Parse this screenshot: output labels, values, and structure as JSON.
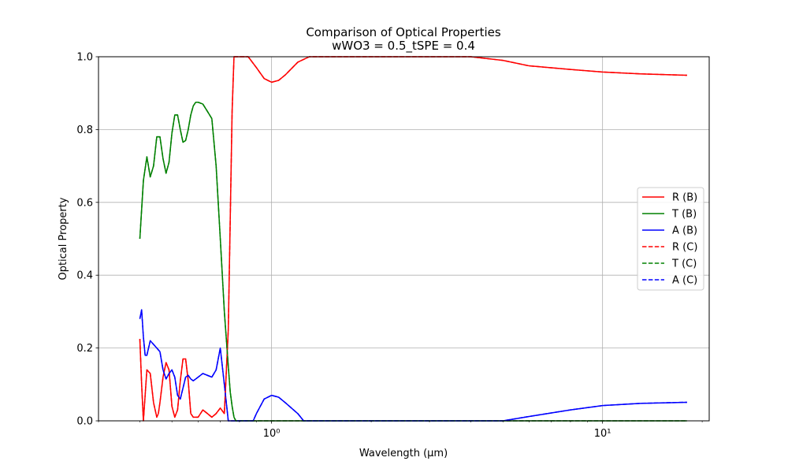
{
  "chart_data": {
    "type": "line",
    "title": "Comparison of Optical Properties",
    "subtitle": "wWO3 = 0.5_tSPE = 0.4",
    "xlabel": "Wavelength (μm)",
    "ylabel": "Optical Property",
    "xscale": "log",
    "xlim": [
      0.3,
      21
    ],
    "ylim": [
      0,
      1
    ],
    "xticks": [
      {
        "value": 1,
        "label": "10⁰"
      },
      {
        "value": 10,
        "label": "10¹"
      }
    ],
    "yticks": [
      {
        "value": 0.0,
        "label": "0.0"
      },
      {
        "value": 0.2,
        "label": "0.2"
      },
      {
        "value": 0.4,
        "label": "0.4"
      },
      {
        "value": 0.6,
        "label": "0.6"
      },
      {
        "value": 0.8,
        "label": "0.8"
      },
      {
        "value": 1.0,
        "label": "1.0"
      }
    ],
    "grid": true,
    "legend_position": "center-right",
    "series": [
      {
        "name": "R (B)",
        "color": "#ff0000",
        "dash": "solid",
        "x": [
          0.4,
          0.405,
          0.41,
          0.415,
          0.42,
          0.43,
          0.44,
          0.45,
          0.455,
          0.46,
          0.47,
          0.48,
          0.49,
          0.5,
          0.51,
          0.52,
          0.53,
          0.54,
          0.55,
          0.56,
          0.57,
          0.58,
          0.59,
          0.6,
          0.61,
          0.62,
          0.64,
          0.66,
          0.68,
          0.7,
          0.72,
          0.74,
          0.75,
          0.76,
          0.77,
          0.78,
          0.79,
          0.8,
          0.85,
          0.9,
          0.95,
          1.0,
          1.05,
          1.1,
          1.2,
          1.3,
          1.5,
          1.7,
          2.0,
          2.5,
          3.0,
          4.0,
          5.0,
          6.0,
          8.0,
          10.0,
          13.0,
          18.0
        ],
        "y": [
          0.225,
          0.1,
          0.0,
          0.07,
          0.14,
          0.13,
          0.05,
          0.01,
          0.02,
          0.05,
          0.12,
          0.16,
          0.14,
          0.04,
          0.01,
          0.03,
          0.11,
          0.17,
          0.17,
          0.11,
          0.02,
          0.01,
          0.01,
          0.01,
          0.02,
          0.03,
          0.02,
          0.01,
          0.02,
          0.035,
          0.02,
          0.25,
          0.55,
          0.85,
          1.0,
          1.0,
          1.0,
          1.0,
          1.0,
          0.97,
          0.94,
          0.93,
          0.935,
          0.95,
          0.985,
          1.0,
          1.0,
          1.0,
          1.0,
          1.0,
          1.0,
          1.0,
          0.99,
          0.975,
          0.965,
          0.958,
          0.953,
          0.949
        ]
      },
      {
        "name": "T (B)",
        "color": "#008000",
        "dash": "solid",
        "x": [
          0.4,
          0.41,
          0.42,
          0.43,
          0.44,
          0.45,
          0.46,
          0.47,
          0.48,
          0.49,
          0.5,
          0.51,
          0.52,
          0.53,
          0.54,
          0.55,
          0.56,
          0.57,
          0.58,
          0.59,
          0.6,
          0.62,
          0.64,
          0.66,
          0.68,
          0.7,
          0.72,
          0.74,
          0.75,
          0.76,
          0.77,
          0.78,
          0.79,
          0.8,
          0.85,
          1.0,
          2.0,
          5.0,
          10.0,
          18.0
        ],
        "y": [
          0.5,
          0.66,
          0.725,
          0.67,
          0.7,
          0.78,
          0.78,
          0.72,
          0.68,
          0.71,
          0.79,
          0.84,
          0.84,
          0.8,
          0.765,
          0.77,
          0.8,
          0.84,
          0.865,
          0.875,
          0.875,
          0.87,
          0.85,
          0.83,
          0.7,
          0.5,
          0.3,
          0.15,
          0.08,
          0.04,
          0.01,
          0.0,
          0.0,
          0.0,
          0.0,
          0.0,
          0.0,
          0.0,
          0.0,
          0.0
        ]
      },
      {
        "name": "A (B)",
        "color": "#0000ff",
        "dash": "solid",
        "x": [
          0.4,
          0.405,
          0.41,
          0.415,
          0.42,
          0.43,
          0.44,
          0.45,
          0.46,
          0.47,
          0.48,
          0.49,
          0.5,
          0.51,
          0.52,
          0.53,
          0.54,
          0.55,
          0.56,
          0.57,
          0.58,
          0.59,
          0.6,
          0.62,
          0.64,
          0.66,
          0.68,
          0.7,
          0.72,
          0.74,
          0.75,
          0.76,
          0.77,
          0.78,
          0.79,
          0.8,
          0.85,
          0.88,
          0.9,
          0.95,
          1.0,
          1.05,
          1.1,
          1.2,
          1.25,
          1.3,
          2.0,
          3.0,
          4.0,
          5.0,
          6.0,
          8.0,
          10.0,
          13.0,
          18.0
        ],
        "y": [
          0.28,
          0.305,
          0.23,
          0.18,
          0.18,
          0.22,
          0.21,
          0.2,
          0.19,
          0.14,
          0.115,
          0.13,
          0.14,
          0.12,
          0.07,
          0.06,
          0.09,
          0.12,
          0.125,
          0.115,
          0.11,
          0.115,
          0.12,
          0.13,
          0.125,
          0.12,
          0.14,
          0.2,
          0.1,
          0.0,
          0.0,
          0.0,
          0.0,
          0.0,
          0.0,
          0.0,
          0.0,
          0.0,
          0.02,
          0.06,
          0.07,
          0.065,
          0.05,
          0.02,
          0.0,
          0.0,
          0.0,
          0.0,
          0.0,
          0.0,
          0.012,
          0.03,
          0.042,
          0.048,
          0.051
        ]
      },
      {
        "name": "R (C)",
        "color": "#ff0000",
        "dash": "dashed",
        "same_as": "R (B)"
      },
      {
        "name": "T (C)",
        "color": "#008000",
        "dash": "dashed",
        "same_as": "T (B)"
      },
      {
        "name": "A (C)",
        "color": "#0000ff",
        "dash": "dashed",
        "same_as": "A (B)"
      }
    ]
  }
}
